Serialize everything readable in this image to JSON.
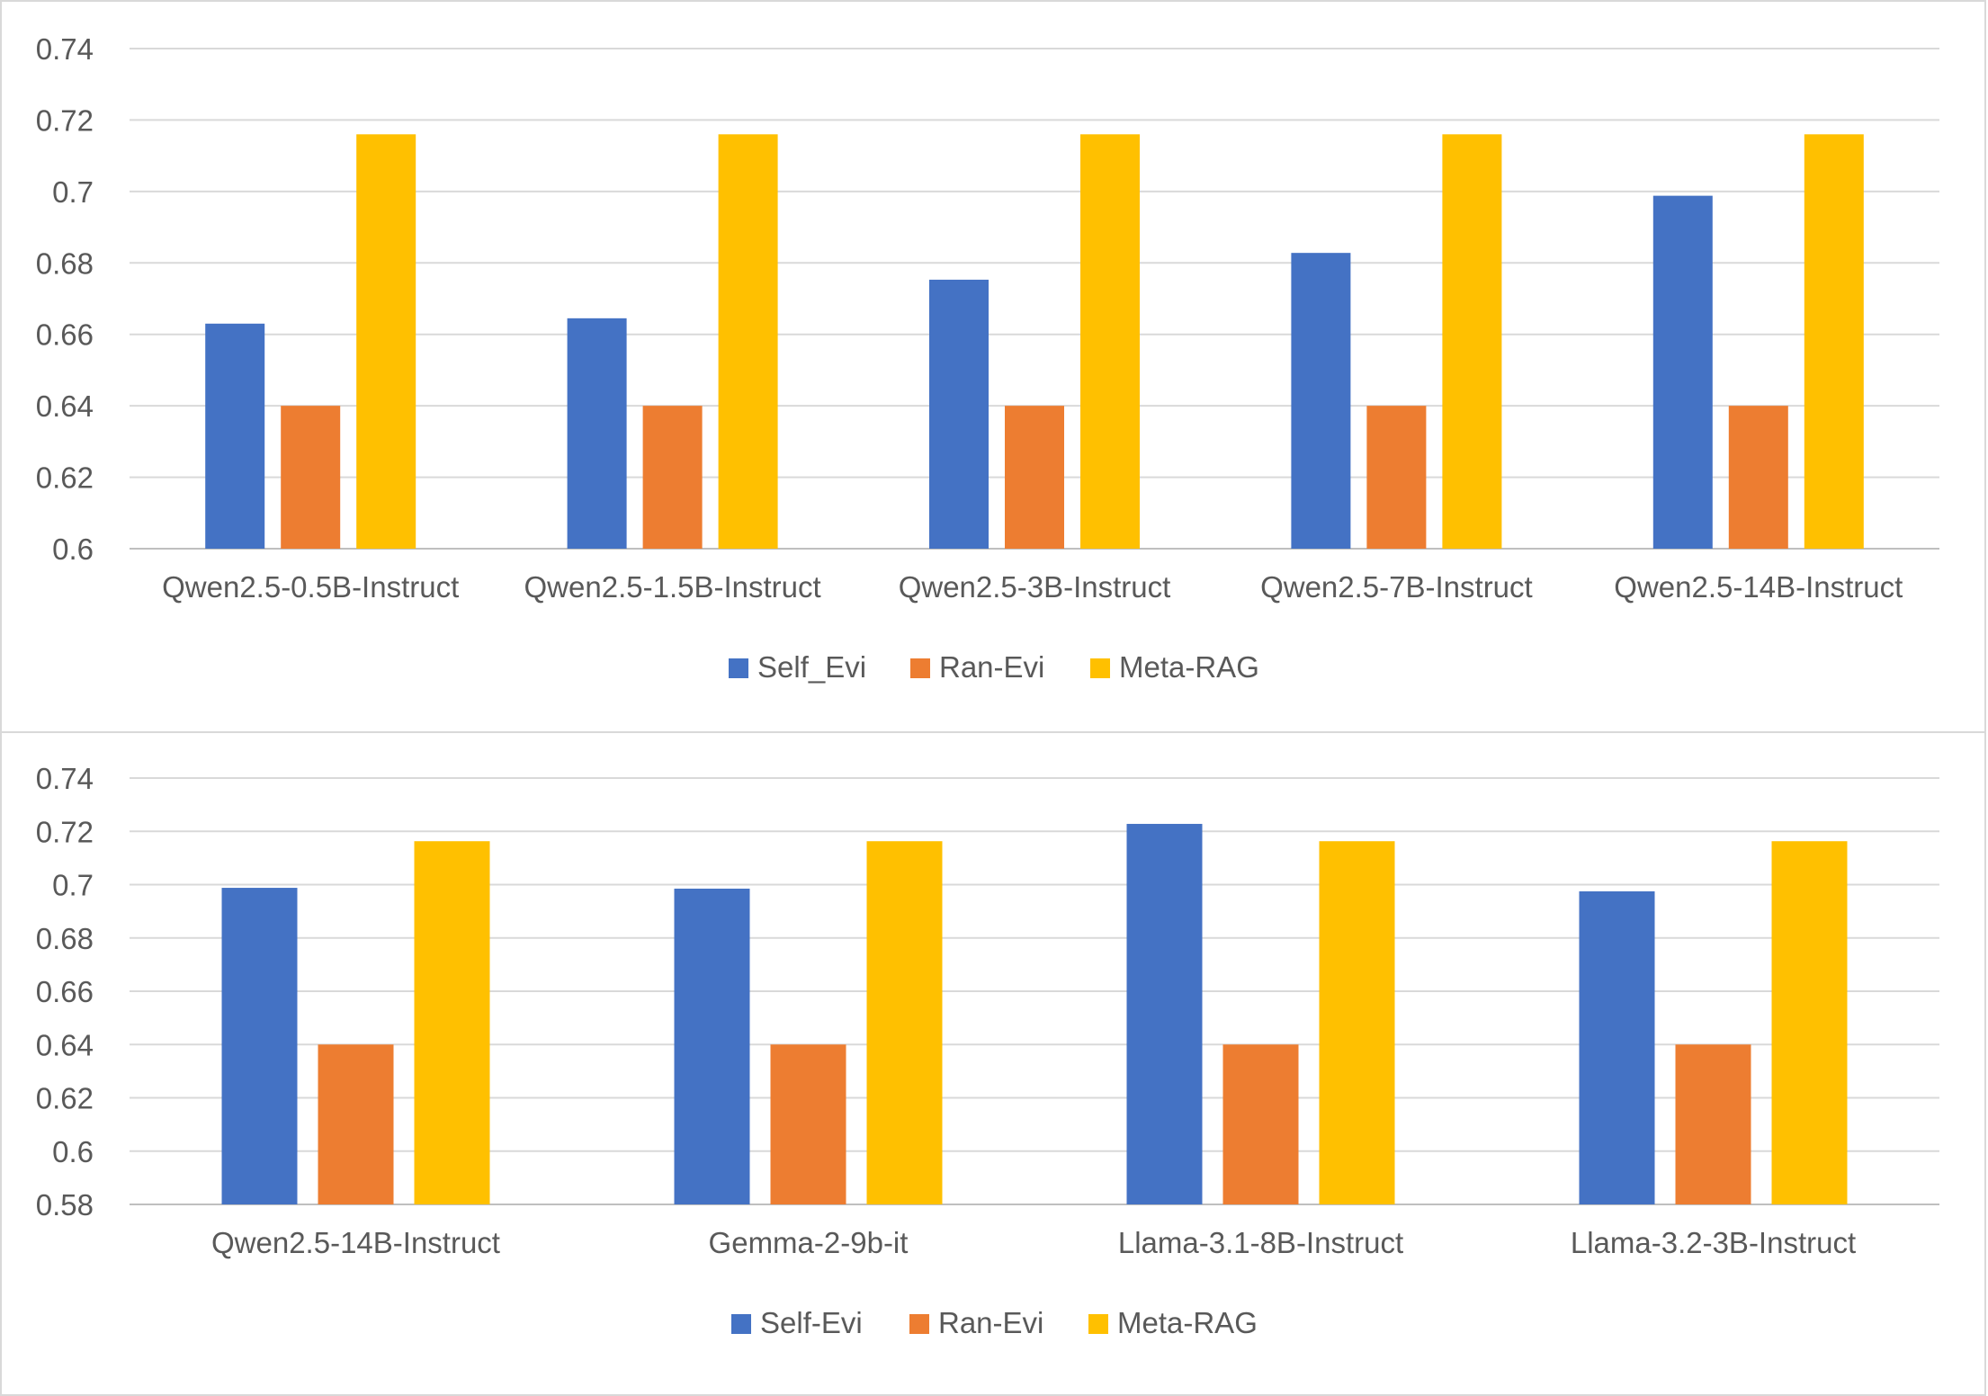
{
  "chart_data": [
    {
      "type": "bar",
      "title": "",
      "xlabel": "",
      "ylabel": "",
      "ylim": [
        0.6,
        0.74
      ],
      "yticks": [
        "0.6",
        "0.62",
        "0.64",
        "0.66",
        "0.68",
        "0.7",
        "0.72",
        "0.74"
      ],
      "ytick_values": [
        0.6,
        0.62,
        0.64,
        0.66,
        0.68,
        0.7,
        0.72,
        0.74
      ],
      "grid": true,
      "legend": "bottom",
      "categories": [
        "Qwen2.5-0.5B-Instruct",
        "Qwen2.5-1.5B-Instruct",
        "Qwen2.5-3B-Instruct",
        "Qwen2.5-7B-Instruct",
        "Qwen2.5-14B-Instruct"
      ],
      "series": [
        {
          "name": "Self_Evi",
          "color": "#4472c4",
          "values": [
            0.663,
            0.6645,
            0.6753,
            0.6828,
            0.6988
          ]
        },
        {
          "name": "Ran-Evi",
          "color": "#ed7d31",
          "values": [
            0.64,
            0.64,
            0.64,
            0.64,
            0.64
          ]
        },
        {
          "name": "Meta-RAG",
          "color": "#ffc000",
          "values": [
            0.716,
            0.716,
            0.716,
            0.716,
            0.716
          ]
        }
      ]
    },
    {
      "type": "bar",
      "title": "",
      "xlabel": "",
      "ylabel": "",
      "ylim": [
        0.58,
        0.74
      ],
      "yticks": [
        "0.58",
        "0.6",
        "0.62",
        "0.64",
        "0.66",
        "0.68",
        "0.7",
        "0.72",
        "0.74"
      ],
      "ytick_values": [
        0.58,
        0.6,
        0.62,
        0.64,
        0.66,
        0.68,
        0.7,
        0.72,
        0.74
      ],
      "grid": true,
      "legend": "bottom",
      "categories": [
        "Qwen2.5-14B-Instruct",
        "Gemma-2-9b-it",
        "Llama-3.1-8B-Instruct",
        "Llama-3.2-3B-Instruct"
      ],
      "series": [
        {
          "name": "Self-Evi",
          "color": "#4472c4",
          "values": [
            0.6988,
            0.6985,
            0.7228,
            0.6975
          ]
        },
        {
          "name": "Ran-Evi",
          "color": "#ed7d31",
          "values": [
            0.64,
            0.64,
            0.64,
            0.64
          ]
        },
        {
          "name": "Meta-RAG",
          "color": "#ffc000",
          "values": [
            0.7163,
            0.7163,
            0.7163,
            0.7163
          ]
        }
      ]
    }
  ]
}
